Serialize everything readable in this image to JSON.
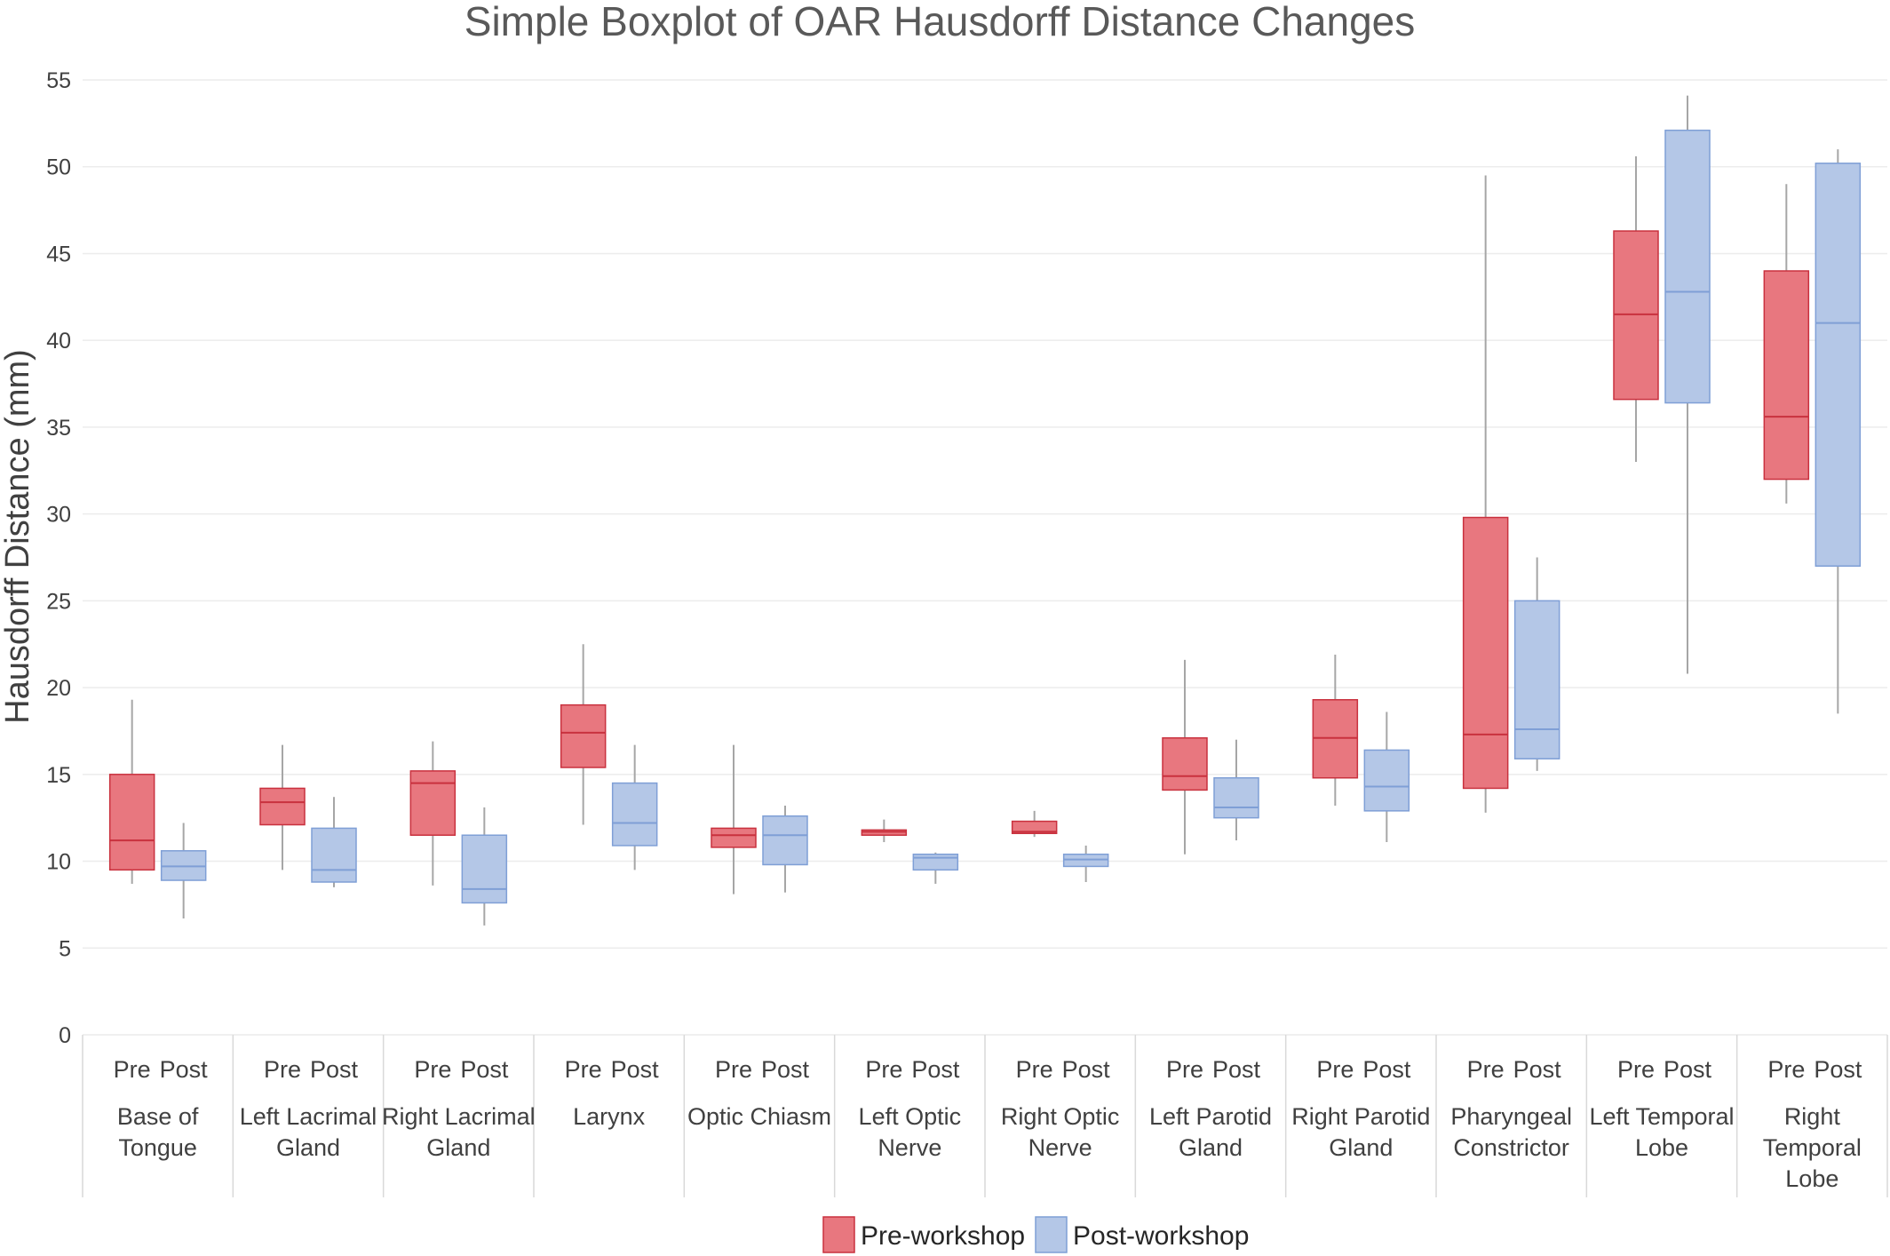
{
  "chart_data": {
    "type": "boxplot",
    "title": "Simple Boxplot of OAR Hausdorff Distance Changes",
    "ylabel": "Hausdorff Distance (mm)",
    "ylim": [
      0,
      55
    ],
    "yticks": [
      0,
      5,
      10,
      15,
      20,
      25,
      30,
      35,
      40,
      45,
      50,
      55
    ],
    "grid": true,
    "legend_position": "bottom",
    "sub_labels": [
      "Pre",
      "Post"
    ],
    "series": [
      {
        "name": "Pre-workshop",
        "fill": "#E8777F",
        "stroke": "#C9313E"
      },
      {
        "name": "Post-workshop",
        "fill": "#B4C7E7",
        "stroke": "#7F9FD6"
      }
    ],
    "categories": [
      {
        "label": "Base of Tongue",
        "label_lines": [
          "Base of",
          "Tongue"
        ],
        "pre": {
          "min": 8.7,
          "q1": 9.5,
          "median": 11.2,
          "q3": 15.0,
          "max": 19.3
        },
        "post": {
          "min": 6.7,
          "q1": 8.9,
          "median": 9.7,
          "q3": 10.6,
          "max": 12.2
        }
      },
      {
        "label": "Left Lacrimal Gland",
        "label_lines": [
          "Left Lacrimal",
          "Gland"
        ],
        "pre": {
          "min": 9.5,
          "q1": 12.1,
          "median": 13.4,
          "q3": 14.2,
          "max": 16.7
        },
        "post": {
          "min": 8.5,
          "q1": 8.8,
          "median": 9.5,
          "q3": 11.9,
          "max": 13.7
        }
      },
      {
        "label": "Right Lacrimal Gland",
        "label_lines": [
          "Right Lacrimal",
          "Gland"
        ],
        "pre": {
          "min": 8.6,
          "q1": 11.5,
          "median": 14.5,
          "q3": 15.2,
          "max": 16.9
        },
        "post": {
          "min": 6.3,
          "q1": 7.6,
          "median": 8.4,
          "q3": 11.5,
          "max": 13.1
        }
      },
      {
        "label": "Larynx",
        "label_lines": [
          "Larynx"
        ],
        "pre": {
          "min": 12.1,
          "q1": 15.4,
          "median": 17.4,
          "q3": 19.0,
          "max": 22.5
        },
        "post": {
          "min": 9.5,
          "q1": 10.9,
          "median": 12.2,
          "q3": 14.5,
          "max": 16.7
        }
      },
      {
        "label": "Optic Chiasm",
        "label_lines": [
          "Optic Chiasm"
        ],
        "pre": {
          "min": 8.1,
          "q1": 10.8,
          "median": 11.5,
          "q3": 11.9,
          "max": 16.7
        },
        "post": {
          "min": 8.2,
          "q1": 9.8,
          "median": 11.5,
          "q3": 12.6,
          "max": 13.2
        }
      },
      {
        "label": "Left Optic Nerve",
        "label_lines": [
          "Left Optic",
          "Nerve"
        ],
        "pre": {
          "min": 11.1,
          "q1": 11.5,
          "median": 11.7,
          "q3": 11.8,
          "max": 12.4
        },
        "post": {
          "min": 8.7,
          "q1": 9.5,
          "median": 10.2,
          "q3": 10.4,
          "max": 10.5
        }
      },
      {
        "label": "Right Optic Nerve",
        "label_lines": [
          "Right Optic",
          "Nerve"
        ],
        "pre": {
          "min": 11.4,
          "q1": 11.6,
          "median": 11.7,
          "q3": 12.3,
          "max": 12.9
        },
        "post": {
          "min": 8.8,
          "q1": 9.7,
          "median": 10.1,
          "q3": 10.4,
          "max": 10.9
        }
      },
      {
        "label": "Left Parotid Gland",
        "label_lines": [
          "Left Parotid",
          "Gland"
        ],
        "pre": {
          "min": 10.4,
          "q1": 14.1,
          "median": 14.9,
          "q3": 17.1,
          "max": 21.6
        },
        "post": {
          "min": 11.2,
          "q1": 12.5,
          "median": 13.1,
          "q3": 14.8,
          "max": 17.0
        }
      },
      {
        "label": "Right Parotid Gland",
        "label_lines": [
          "Right Parotid",
          "Gland"
        ],
        "pre": {
          "min": 13.2,
          "q1": 14.8,
          "median": 17.1,
          "q3": 19.3,
          "max": 21.9
        },
        "post": {
          "min": 11.1,
          "q1": 12.9,
          "median": 14.3,
          "q3": 16.4,
          "max": 18.6
        }
      },
      {
        "label": "Pharyngeal Constrictor",
        "label_lines": [
          "Pharyngeal",
          "Constrictor"
        ],
        "pre": {
          "min": 12.8,
          "q1": 14.2,
          "median": 17.3,
          "q3": 29.8,
          "max": 49.5
        },
        "post": {
          "min": 15.2,
          "q1": 15.9,
          "median": 17.6,
          "q3": 25.0,
          "max": 27.5
        }
      },
      {
        "label": "Left Temporal Lobe",
        "label_lines": [
          "Left Temporal",
          "Lobe"
        ],
        "pre": {
          "min": 33.0,
          "q1": 36.6,
          "median": 41.5,
          "q3": 46.3,
          "max": 50.6
        },
        "post": {
          "min": 20.8,
          "q1": 36.4,
          "median": 42.8,
          "q3": 52.1,
          "max": 54.1
        }
      },
      {
        "label": "Right Temporal Lobe",
        "label_lines": [
          "Right",
          "Temporal",
          "Lobe"
        ],
        "pre": {
          "min": 30.6,
          "q1": 32.0,
          "median": 35.6,
          "q3": 44.0,
          "max": 49.0
        },
        "post": {
          "min": 18.5,
          "q1": 27.0,
          "median": 41.0,
          "q3": 50.2,
          "max": 51.0
        }
      }
    ]
  }
}
